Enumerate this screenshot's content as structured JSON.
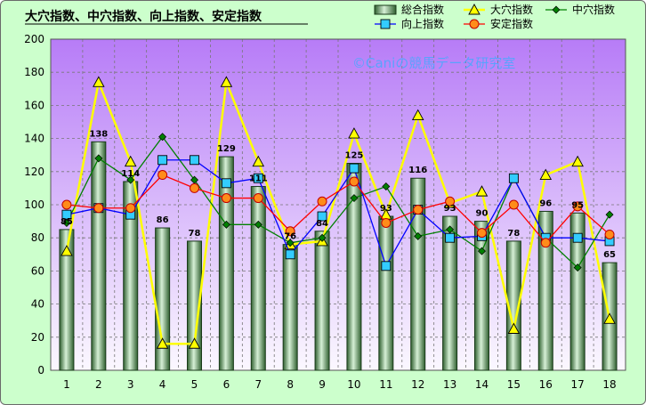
{
  "chart_data": {
    "type": "bar",
    "title": "大穴指数、中穴指数、向上指数、安定指数",
    "watermark": "©Caniの競馬データ研究室",
    "categories": [
      "1",
      "2",
      "3",
      "4",
      "5",
      "6",
      "7",
      "8",
      "9",
      "10",
      "11",
      "12",
      "13",
      "14",
      "15",
      "16",
      "17",
      "18"
    ],
    "ylim": [
      0,
      200
    ],
    "yticks": [
      "0",
      "20",
      "40",
      "60",
      "80",
      "100",
      "120",
      "140",
      "160",
      "180",
      "200"
    ],
    "grid": true,
    "legend_position": "top-right",
    "series": [
      {
        "name": "総合指数",
        "type": "bar",
        "color": "#99cc99",
        "values": [
          85,
          138,
          114,
          86,
          78,
          129,
          111,
          76,
          84,
          125,
          93,
          116,
          93,
          90,
          78,
          96,
          95,
          65
        ]
      },
      {
        "name": "大穴指数",
        "type": "line",
        "color": "#ffff00",
        "marker": "triangle",
        "values": [
          72,
          174,
          126,
          16,
          16,
          174,
          126,
          76,
          78,
          143,
          94,
          154,
          101,
          108,
          25,
          118,
          126,
          31
        ]
      },
      {
        "name": "中穴指数",
        "type": "line",
        "color": "#008000",
        "marker": "diamond",
        "values": [
          89,
          128,
          115,
          141,
          115,
          88,
          88,
          77,
          80,
          104,
          111,
          81,
          85,
          72,
          116,
          80,
          62,
          94
        ]
      },
      {
        "name": "向上指数",
        "type": "line",
        "color": "#0000ff",
        "marker": "square",
        "values": [
          94,
          98,
          94,
          127,
          127,
          113,
          116,
          70,
          93,
          122,
          63,
          97,
          80,
          81,
          116,
          80,
          80,
          78
        ]
      },
      {
        "name": "安定指数",
        "type": "line",
        "color": "#ff0000",
        "marker": "circle",
        "values": [
          100,
          98,
          98,
          118,
          110,
          104,
          104,
          84,
          102,
          114,
          89,
          97,
          102,
          83,
          100,
          77,
          99,
          82
        ]
      }
    ]
  }
}
